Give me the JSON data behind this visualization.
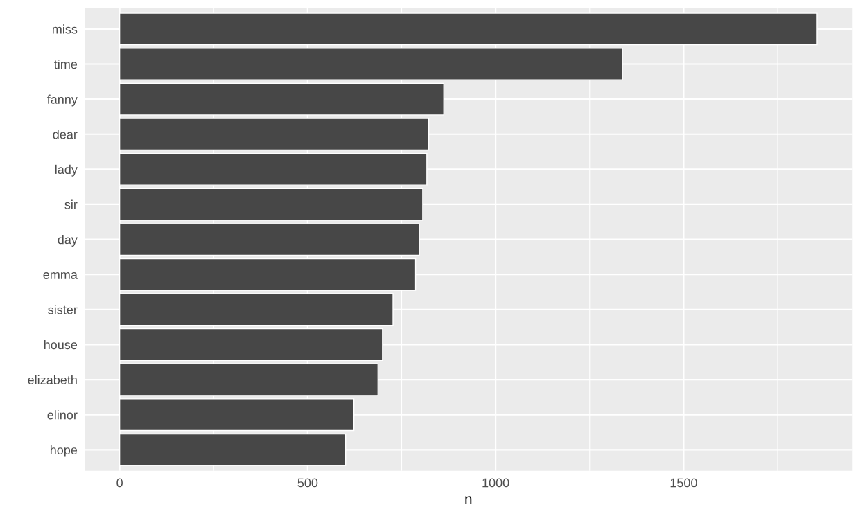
{
  "chart_data": {
    "type": "bar",
    "orientation": "horizontal",
    "xlabel": "n",
    "categories": [
      "miss",
      "time",
      "fanny",
      "dear",
      "lady",
      "sir",
      "day",
      "emma",
      "sister",
      "house",
      "elizabeth",
      "elinor",
      "hope"
    ],
    "values": [
      1855,
      1337,
      862,
      822,
      817,
      806,
      797,
      787,
      727,
      699,
      687,
      623,
      601
    ],
    "color": "#474747",
    "xlim": [
      -92.75,
      1947.75
    ],
    "xticks": [
      0,
      {
        "value": 250,
        "label": null
      },
      500,
      {
        "value": 750,
        "label": null
      },
      1000,
      {
        "value": 1250,
        "label": null
      },
      1500,
      {
        "value": 1750,
        "label": null
      }
    ],
    "grid": true
  }
}
